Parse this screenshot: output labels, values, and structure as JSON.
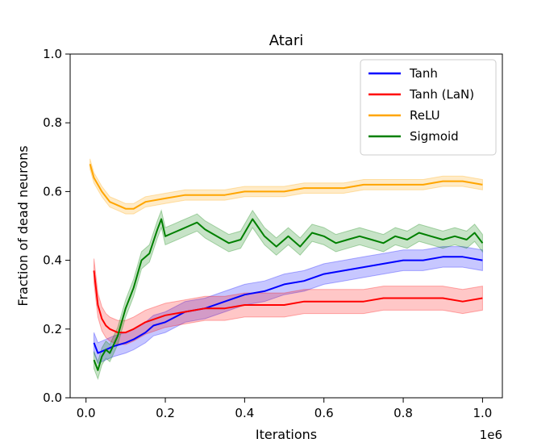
{
  "chart_data": {
    "type": "line",
    "title": "Atari",
    "xlabel": "Iterations",
    "ylabel": "Fraction of dead neurons",
    "x_scale_note": "1e6",
    "xlim": [
      -0.04,
      1.05
    ],
    "ylim": [
      0.0,
      1.0
    ],
    "xticks": [
      0.0,
      0.2,
      0.4,
      0.6,
      0.8,
      1.0
    ],
    "xtick_labels": [
      "0.0",
      "0.2",
      "0.4",
      "0.6",
      "0.8",
      "1.0"
    ],
    "yticks": [
      0.0,
      0.2,
      0.4,
      0.6,
      0.8,
      1.0
    ],
    "ytick_labels": [
      "0.0",
      "0.2",
      "0.4",
      "0.6",
      "0.8",
      "1.0"
    ],
    "legend_position": "top-right",
    "series": [
      {
        "name": "Tanh",
        "color": "#0000ff",
        "x": [
          0.02,
          0.03,
          0.05,
          0.07,
          0.1,
          0.12,
          0.15,
          0.17,
          0.2,
          0.25,
          0.3,
          0.35,
          0.4,
          0.45,
          0.5,
          0.55,
          0.6,
          0.65,
          0.7,
          0.75,
          0.8,
          0.85,
          0.9,
          0.95,
          1.0
        ],
        "y": [
          0.16,
          0.13,
          0.14,
          0.15,
          0.16,
          0.17,
          0.19,
          0.21,
          0.22,
          0.25,
          0.26,
          0.28,
          0.3,
          0.31,
          0.33,
          0.34,
          0.36,
          0.37,
          0.38,
          0.39,
          0.4,
          0.4,
          0.41,
          0.41,
          0.4
        ],
        "band": 0.03
      },
      {
        "name": "Tanh (LaN)",
        "color": "#ff0000",
        "x": [
          0.02,
          0.03,
          0.04,
          0.05,
          0.06,
          0.08,
          0.1,
          0.12,
          0.15,
          0.2,
          0.25,
          0.3,
          0.35,
          0.4,
          0.45,
          0.5,
          0.55,
          0.6,
          0.65,
          0.7,
          0.75,
          0.8,
          0.85,
          0.9,
          0.95,
          1.0
        ],
        "y": [
          0.37,
          0.27,
          0.23,
          0.21,
          0.2,
          0.19,
          0.19,
          0.2,
          0.22,
          0.24,
          0.25,
          0.26,
          0.26,
          0.27,
          0.27,
          0.27,
          0.28,
          0.28,
          0.28,
          0.28,
          0.29,
          0.29,
          0.29,
          0.29,
          0.28,
          0.29
        ],
        "band": 0.035
      },
      {
        "name": "ReLU",
        "color": "#ffa500",
        "x": [
          0.01,
          0.02,
          0.04,
          0.06,
          0.08,
          0.1,
          0.12,
          0.15,
          0.2,
          0.25,
          0.3,
          0.35,
          0.4,
          0.45,
          0.5,
          0.55,
          0.6,
          0.65,
          0.7,
          0.75,
          0.8,
          0.85,
          0.9,
          0.95,
          1.0
        ],
        "y": [
          0.68,
          0.64,
          0.6,
          0.57,
          0.56,
          0.55,
          0.55,
          0.57,
          0.58,
          0.59,
          0.59,
          0.59,
          0.6,
          0.6,
          0.6,
          0.61,
          0.61,
          0.61,
          0.62,
          0.62,
          0.62,
          0.62,
          0.63,
          0.63,
          0.62
        ],
        "band": 0.015
      },
      {
        "name": "Sigmoid",
        "color": "#008000",
        "x": [
          0.02,
          0.03,
          0.04,
          0.05,
          0.06,
          0.08,
          0.1,
          0.12,
          0.14,
          0.16,
          0.18,
          0.19,
          0.2,
          0.22,
          0.24,
          0.26,
          0.28,
          0.3,
          0.33,
          0.36,
          0.39,
          0.42,
          0.45,
          0.48,
          0.51,
          0.54,
          0.57,
          0.6,
          0.63,
          0.66,
          0.69,
          0.72,
          0.75,
          0.78,
          0.81,
          0.84,
          0.87,
          0.9,
          0.93,
          0.96,
          0.98,
          1.0
        ],
        "y": [
          0.11,
          0.08,
          0.12,
          0.14,
          0.13,
          0.18,
          0.26,
          0.32,
          0.4,
          0.42,
          0.49,
          0.52,
          0.47,
          0.48,
          0.49,
          0.5,
          0.51,
          0.49,
          0.47,
          0.45,
          0.46,
          0.52,
          0.47,
          0.44,
          0.47,
          0.44,
          0.48,
          0.47,
          0.45,
          0.46,
          0.47,
          0.46,
          0.45,
          0.47,
          0.46,
          0.48,
          0.47,
          0.46,
          0.47,
          0.46,
          0.48,
          0.45
        ],
        "band": 0.025
      }
    ]
  }
}
